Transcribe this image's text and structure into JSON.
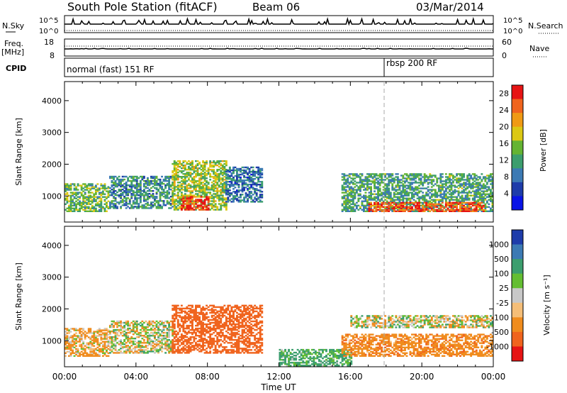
{
  "header": {
    "title": "South Pole Station (fitACF)",
    "beam": "Beam 06",
    "date": "03/Mar/2014"
  },
  "strips": {
    "nsky_label": "N.Sky",
    "nsearch_label": "N.Search",
    "exp_top_left": "10^5",
    "exp_bottom_left": "10^0",
    "exp_top_right": "10^5",
    "exp_bottom_right": "10^0",
    "freq_label": "Freq.",
    "freq_unit": "[MHz]",
    "freq_top": "18",
    "freq_bottom": "8",
    "nave_label": "Nave",
    "nave_top": "60",
    "nave_bottom": "0",
    "cpid_label": "CPID",
    "cpid_segment_1": "normal (fast) 151 RF",
    "cpid_segment_2": "rbsp 200 RF"
  },
  "colors": {
    "power_scale": [
      "#0a14e6",
      "#1e3caa",
      "#3c7ab4",
      "#3c9e6e",
      "#64b432",
      "#dcc814",
      "#f09a14",
      "#f0641e",
      "#e61414"
    ],
    "velocity_scale": [
      "#e61414",
      "#f0641e",
      "#f08c1e",
      "#f5be78",
      "#c8c8c8",
      "#64be32",
      "#3c9e6e",
      "#3c7ab4",
      "#1e3caa"
    ]
  },
  "chart_data": [
    {
      "type": "heatmap",
      "title": "",
      "xlabel": "",
      "ylabel": "Slant Range [km]",
      "x_ticks": [
        "00:00",
        "04:00",
        "08:00",
        "12:00",
        "16:00",
        "20:00",
        "00:00"
      ],
      "y_ticks": [
        "1000",
        "2000",
        "3000",
        "4000"
      ],
      "ylim": [
        180,
        4600
      ],
      "colorbar_label": "Power [dB]",
      "colorbar_ticks": [
        "4",
        "8",
        "12",
        "16",
        "20",
        "24",
        "28"
      ],
      "colorbar_range": [
        0,
        30
      ],
      "regions": [
        {
          "t": [
            0.0,
            2.5
          ],
          "r": [
            500,
            1400
          ],
          "power": 14
        },
        {
          "t": [
            2.5,
            6.0
          ],
          "r": [
            600,
            1600
          ],
          "power": 10
        },
        {
          "t": [
            6.0,
            9.0
          ],
          "r": [
            550,
            2100
          ],
          "power": 16
        },
        {
          "t": [
            9.0,
            11.0
          ],
          "r": [
            800,
            1900
          ],
          "power": 8
        },
        {
          "t": [
            15.5,
            24.0
          ],
          "r": [
            500,
            1700
          ],
          "power": 12
        },
        {
          "t": [
            6.5,
            8.0
          ],
          "r": [
            550,
            1000
          ],
          "power": 28
        },
        {
          "t": [
            17.0,
            23.5
          ],
          "r": [
            500,
            800
          ],
          "power": 26
        }
      ]
    },
    {
      "type": "heatmap",
      "title": "",
      "xlabel": "Time UT",
      "ylabel": "Slant Range [km]",
      "x_ticks": [
        "00:00",
        "04:00",
        "08:00",
        "12:00",
        "16:00",
        "20:00",
        "00:00"
      ],
      "y_ticks": [
        "1000",
        "2000",
        "3000",
        "4000"
      ],
      "ylim": [
        180,
        4600
      ],
      "colorbar_label": "Velocity [m s⁻¹]",
      "colorbar_ticks": [
        "1000",
        "500",
        "100",
        "25",
        "-25",
        "-100",
        "-500",
        "-1000"
      ],
      "colorbar_range": [
        -1000,
        1000
      ],
      "regions": [
        {
          "t": [
            0.0,
            2.5
          ],
          "r": [
            500,
            1400
          ],
          "velocity": -100
        },
        {
          "t": [
            2.5,
            6.0
          ],
          "r": [
            600,
            1600
          ],
          "velocity": 0
        },
        {
          "t": [
            6.0,
            11.0
          ],
          "r": [
            600,
            2100
          ],
          "velocity": -500
        },
        {
          "t": [
            12.0,
            16.0
          ],
          "r": [
            200,
            700
          ],
          "velocity": 150
        },
        {
          "t": [
            15.5,
            24.0
          ],
          "r": [
            500,
            1200
          ],
          "velocity": -200
        },
        {
          "t": [
            16.0,
            24.0
          ],
          "r": [
            1400,
            1800
          ],
          "velocity": 0
        }
      ]
    }
  ]
}
